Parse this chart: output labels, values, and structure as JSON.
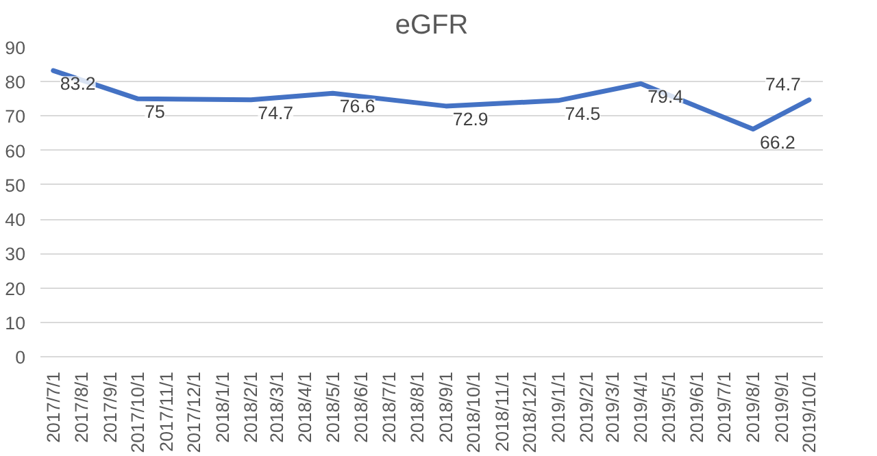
{
  "chart_data": {
    "type": "line",
    "title": "eGFR",
    "x": [
      "2017-07-01",
      "2017-10-01",
      "2018-02-01",
      "2018-05-01",
      "2018-09-01",
      "2019-01-01",
      "2019-04-01",
      "2019-08-01",
      "2019-10-01"
    ],
    "series": [
      {
        "color": "#4472c4",
        "values": [
          83.2,
          75,
          74.7,
          76.6,
          72.9,
          74.5,
          79.4,
          66.2,
          74.7
        ]
      }
    ],
    "data_labels": true,
    "xlim": [
      "2017-06-17",
      "2019-10-16"
    ],
    "xticks": [
      {
        "value": "2017-07-01",
        "label": "2017/7/1"
      },
      {
        "value": "2017-08-01",
        "label": "2017/8/1"
      },
      {
        "value": "2017-09-01",
        "label": "2017/9/1"
      },
      {
        "value": "2017-10-01",
        "label": "2017/10/1"
      },
      {
        "value": "2017-11-01",
        "label": "2017/11/1"
      },
      {
        "value": "2017-12-01",
        "label": "2017/12/1"
      },
      {
        "value": "2018-01-01",
        "label": "2018/1/1"
      },
      {
        "value": "2018-02-01",
        "label": "2018/2/1"
      },
      {
        "value": "2018-03-01",
        "label": "2018/3/1"
      },
      {
        "value": "2018-04-01",
        "label": "2018/4/1"
      },
      {
        "value": "2018-05-01",
        "label": "2018/5/1"
      },
      {
        "value": "2018-06-01",
        "label": "2018/6/1"
      },
      {
        "value": "2018-07-01",
        "label": "2018/7/1"
      },
      {
        "value": "2018-08-01",
        "label": "2018/8/1"
      },
      {
        "value": "2018-09-01",
        "label": "2018/9/1"
      },
      {
        "value": "2018-10-01",
        "label": "2018/10/1"
      },
      {
        "value": "2018-11-01",
        "label": "2018/11/1"
      },
      {
        "value": "2018-12-01",
        "label": "2018/12/1"
      },
      {
        "value": "2019-01-01",
        "label": "2019/1/1"
      },
      {
        "value": "2019-02-01",
        "label": "2019/2/1"
      },
      {
        "value": "2019-03-01",
        "label": "2019/3/1"
      },
      {
        "value": "2019-04-01",
        "label": "2019/4/1"
      },
      {
        "value": "2019-05-01",
        "label": "2019/5/1"
      },
      {
        "value": "2019-06-01",
        "label": "2019/6/1"
      },
      {
        "value": "2019-07-01",
        "label": "2019/7/1"
      },
      {
        "value": "2019-08-01",
        "label": "2019/8/1"
      },
      {
        "value": "2019-09-01",
        "label": "2019/9/1"
      },
      {
        "value": "2019-10-01",
        "label": "2019/10/1"
      }
    ],
    "ylim": [
      0,
      90
    ],
    "yticks": [
      0,
      10,
      20,
      30,
      40,
      50,
      60,
      70,
      80,
      90
    ],
    "grid": "y",
    "line_style": "solid",
    "marker": "none"
  }
}
